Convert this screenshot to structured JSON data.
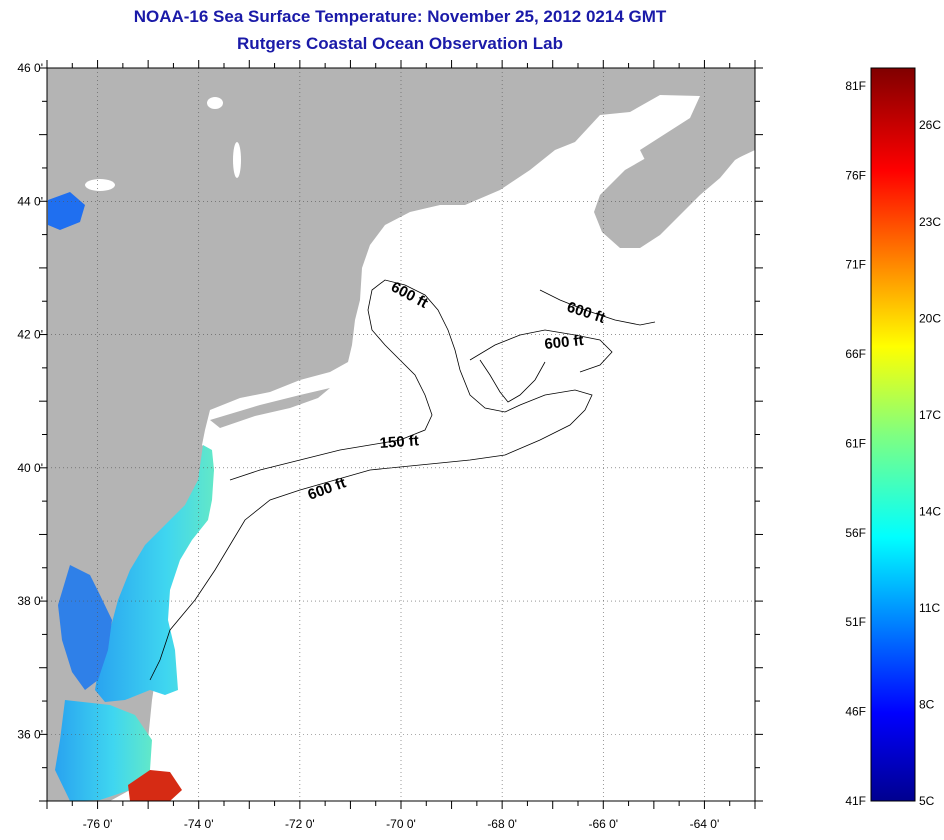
{
  "header": {
    "title": "NOAA-16 Sea Surface Temperature:  November 25, 2012 0214 GMT",
    "subtitle": "Rutgers Coastal Ocean Observation Lab"
  },
  "map": {
    "lat_range": [
      35,
      46
    ],
    "lon_range": [
      -77,
      -63
    ],
    "lat_ticks": [
      {
        "value": 46,
        "label": "46 0'"
      },
      {
        "value": 44,
        "label": "44 0'"
      },
      {
        "value": 42,
        "label": "42 0'"
      },
      {
        "value": 40,
        "label": "40 0'"
      },
      {
        "value": 38,
        "label": "38 0'"
      },
      {
        "value": 36,
        "label": "36 0'"
      }
    ],
    "lon_ticks": [
      {
        "value": -76,
        "label": "-76 0'"
      },
      {
        "value": -74,
        "label": "-74 0'"
      },
      {
        "value": -72,
        "label": "-72 0'"
      },
      {
        "value": -70,
        "label": "-70 0'"
      },
      {
        "value": -68,
        "label": "-68 0'"
      },
      {
        "value": -66,
        "label": "-66 0'"
      },
      {
        "value": -64,
        "label": "-64 0'"
      }
    ],
    "grid": true,
    "land_color": "#b4b4b4",
    "water_color": "#ffffff",
    "contour_labels": [
      "600 ft",
      "600 ft",
      "600 ft",
      "150 ft",
      "600 ft"
    ]
  },
  "colorbar": {
    "fahrenheit_labels": [
      "81F",
      "76F",
      "71F",
      "66F",
      "61F",
      "56F",
      "51F",
      "46F",
      "41F"
    ],
    "celsius_labels": [
      "26C",
      "23C",
      "20C",
      "17C",
      "14C",
      "11C",
      "8C",
      "5C"
    ],
    "colormap": "jet",
    "range_F": [
      41,
      82
    ]
  }
}
